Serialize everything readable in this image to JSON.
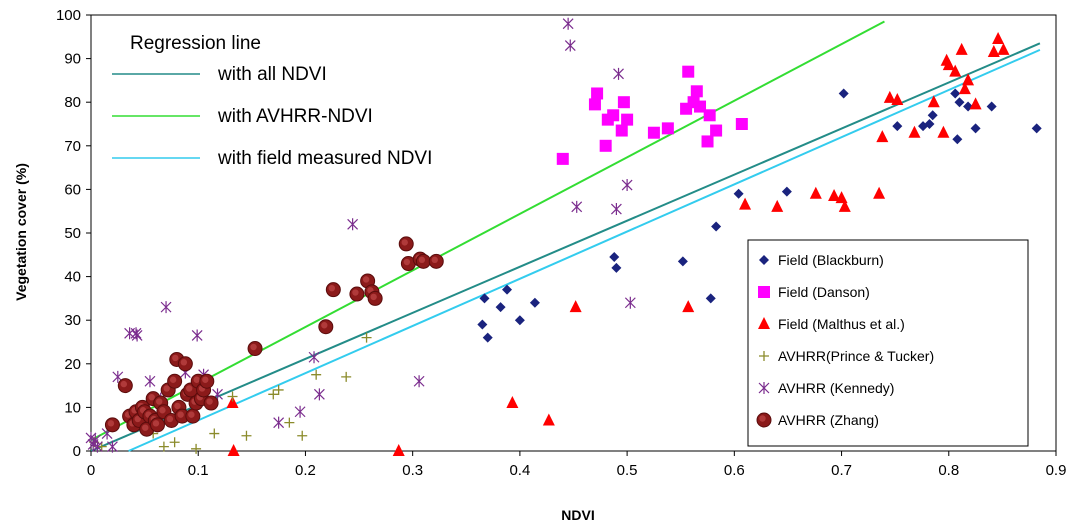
{
  "chart_data": {
    "type": "scatter",
    "title": "",
    "xlabel": "NDVI",
    "ylabel": "Vegetation cover (%)",
    "xlim": [
      0,
      0.9
    ],
    "ylim": [
      0,
      100
    ],
    "x_ticks": [
      "0",
      "0.1",
      "0.2",
      "0.3",
      "0.4",
      "0.5",
      "0.6",
      "0.7",
      "0.8",
      "0.9"
    ],
    "y_ticks": [
      "0",
      "10",
      "20",
      "30",
      "40",
      "50",
      "60",
      "70",
      "80",
      "90",
      "100"
    ],
    "grid": false,
    "legend_position": "bottom-right",
    "regression_legend": {
      "title": "Regression line",
      "entries": [
        {
          "label": "with all NDVI",
          "color": "#238C88"
        },
        {
          "label": "with AVHRR-NDVI",
          "color": "#33DD33"
        },
        {
          "label": "with field measured NDVI",
          "color": "#33CCEE"
        }
      ]
    },
    "regression_lines": [
      {
        "label": "with all NDVI",
        "color": "#238C88",
        "points": [
          [
            0.0,
            0.0
          ],
          [
            0.885,
            93.5
          ]
        ]
      },
      {
        "label": "with AVHRR-NDVI",
        "color": "#33DD33",
        "points": [
          [
            0.0,
            2.5
          ],
          [
            0.74,
            98.5
          ]
        ]
      },
      {
        "label": "with field measured NDVI",
        "color": "#33CCEE",
        "points": [
          [
            0.035,
            0.0
          ],
          [
            0.885,
            92.0
          ]
        ]
      }
    ],
    "series": [
      {
        "name": "Field (Blackburn)",
        "marker": "diamond",
        "color": "#1A237E",
        "x": [
          0.365,
          0.367,
          0.37,
          0.382,
          0.388,
          0.4,
          0.414,
          0.488,
          0.49,
          0.552,
          0.578,
          0.583,
          0.604,
          0.649,
          0.702,
          0.752,
          0.776,
          0.782,
          0.785,
          0.806,
          0.808,
          0.81,
          0.818,
          0.825,
          0.84,
          0.882
        ],
        "y": [
          29,
          35,
          26,
          33,
          37,
          30,
          34,
          44.5,
          42,
          43.5,
          35,
          51.5,
          59,
          59.5,
          82,
          74.5,
          74.5,
          75,
          77,
          82,
          71.5,
          80,
          79,
          74,
          79,
          74
        ]
      },
      {
        "name": "Field (Danson)",
        "marker": "square",
        "color": "#FF00FF",
        "x": [
          0.44,
          0.47,
          0.472,
          0.48,
          0.482,
          0.487,
          0.495,
          0.497,
          0.5,
          0.525,
          0.538,
          0.555,
          0.557,
          0.562,
          0.565,
          0.568,
          0.575,
          0.577,
          0.583,
          0.607
        ],
        "y": [
          67,
          79.5,
          82,
          70,
          76,
          77,
          73.5,
          80,
          76,
          73,
          74,
          78.5,
          87,
          80,
          82.5,
          79,
          71,
          77,
          73.5,
          75
        ]
      },
      {
        "name": "Field (Malthus et al.)",
        "marker": "triangle",
        "color": "#FF0000",
        "x": [
          0.132,
          0.133,
          0.287,
          0.393,
          0.427,
          0.452,
          0.557,
          0.61,
          0.64,
          0.676,
          0.693,
          0.7,
          0.703,
          0.735,
          0.738,
          0.745,
          0.752,
          0.768,
          0.786,
          0.795,
          0.798,
          0.8,
          0.806,
          0.812,
          0.815,
          0.818,
          0.825,
          0.842,
          0.846,
          0.851
        ],
        "y": [
          11,
          0,
          0,
          11,
          7,
          33,
          33,
          56.5,
          56,
          59,
          58.5,
          58,
          56,
          59,
          72,
          81,
          80.5,
          73,
          80,
          73,
          89.5,
          88.5,
          87,
          92,
          83,
          85,
          79.5,
          91.5,
          94.5,
          92
        ]
      },
      {
        "name": "AVHRR(Prince & Tucker)",
        "marker": "plus",
        "color": "#8B8B2B",
        "x": [
          0.003,
          0.01,
          0.04,
          0.058,
          0.068,
          0.078,
          0.098,
          0.115,
          0.132,
          0.145,
          0.17,
          0.175,
          0.185,
          0.197,
          0.21,
          0.238,
          0.257
        ],
        "y": [
          2,
          1,
          6,
          4,
          1,
          2,
          0.5,
          4,
          12.5,
          3.5,
          13,
          14,
          6.5,
          3.5,
          17.5,
          17,
          26
        ]
      },
      {
        "name": "AVHRR (Kennedy)",
        "marker": "star",
        "color": "#7B2D8E",
        "x": [
          0.0,
          0.002,
          0.004,
          0.006,
          0.015,
          0.02,
          0.025,
          0.036,
          0.042,
          0.043,
          0.055,
          0.065,
          0.07,
          0.088,
          0.099,
          0.105,
          0.112,
          0.118,
          0.175,
          0.195,
          0.208,
          0.213,
          0.244,
          0.306,
          0.445,
          0.447,
          0.453,
          0.49,
          0.492,
          0.5,
          0.503
        ],
        "y": [
          3,
          1.5,
          2.5,
          1,
          4,
          1,
          17,
          27,
          27,
          26.5,
          16,
          12,
          33,
          18,
          26.5,
          17.5,
          11,
          13,
          6.5,
          9,
          21.5,
          13,
          52,
          16,
          98,
          93,
          56,
          55.5,
          86.5,
          61,
          34
        ]
      },
      {
        "name": "AVHRR (Zhang)",
        "marker": "circle",
        "color": "#8B1A1A",
        "x": [
          0.02,
          0.032,
          0.036,
          0.04,
          0.042,
          0.045,
          0.048,
          0.05,
          0.052,
          0.055,
          0.058,
          0.06,
          0.062,
          0.065,
          0.068,
          0.072,
          0.075,
          0.078,
          0.08,
          0.082,
          0.085,
          0.088,
          0.09,
          0.093,
          0.095,
          0.098,
          0.1,
          0.103,
          0.105,
          0.108,
          0.112,
          0.153,
          0.219,
          0.226,
          0.248,
          0.258,
          0.262,
          0.265,
          0.294,
          0.296,
          0.307,
          0.31,
          0.322
        ],
        "y": [
          6,
          15,
          8,
          6,
          9,
          7,
          10,
          9,
          5,
          8,
          12,
          7,
          6,
          11,
          9,
          14,
          7,
          16,
          21,
          10,
          8,
          20,
          13,
          14,
          8,
          11,
          16,
          12,
          14,
          16,
          11,
          23.5,
          28.5,
          37,
          36,
          39,
          36.5,
          35,
          47.5,
          43,
          44,
          43.5,
          43.5
        ]
      }
    ]
  }
}
